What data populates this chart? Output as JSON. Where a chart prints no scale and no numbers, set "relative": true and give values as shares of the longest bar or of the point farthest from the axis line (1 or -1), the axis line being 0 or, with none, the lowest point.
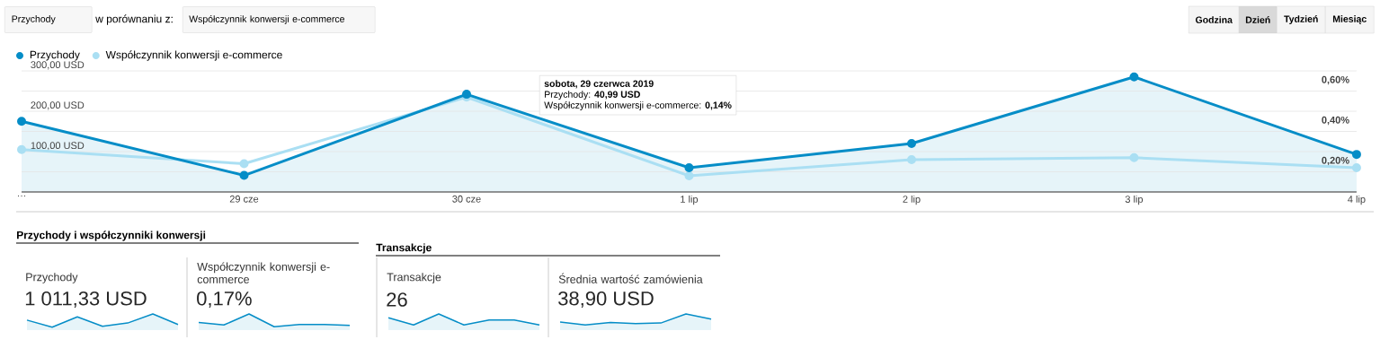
{
  "chart_data": [
    {
      "type": "line",
      "categories": [
        "…",
        "29 cze",
        "30 cze",
        "1 lip",
        "2 lip",
        "3 lip",
        "4 lip"
      ],
      "series": [
        {
          "name": "Przychody",
          "color": "#058dc7",
          "type": "area",
          "values": [
            175,
            40.99,
            242,
            60,
            120,
            285,
            93
          ]
        },
        {
          "name": "Współczynnik konwersji e-commerce",
          "color": "#aadff3",
          "type": "line",
          "axis": "y2",
          "values": [
            0.21,
            0.14,
            0.47,
            0.08,
            0.16,
            0.17,
            0.12
          ]
        }
      ],
      "ylim": [
        0,
        300
      ],
      "yticks": [
        {
          "value": 0,
          "label": null
        },
        {
          "value": 50,
          "label": null
        },
        {
          "value": 100,
          "label": "100,00 USD"
        },
        {
          "value": 150,
          "label": null
        },
        {
          "value": 200,
          "label": "200,00 USD"
        },
        {
          "value": 250,
          "label": null
        },
        {
          "value": 300,
          "label": "300,00 USD"
        }
      ],
      "y2lim": [
        0,
        0.6
      ],
      "y2ticks": [
        {
          "value": 0.2,
          "label": "0,20%"
        },
        {
          "value": 0.4,
          "label": "0,40%"
        },
        {
          "value": 0.6,
          "label": "0,60%"
        }
      ],
      "grid": "y",
      "legend": "top left",
      "marker": "circle",
      "annotations": [
        "Przychody",
        "w porównaniu z:",
        "Współczynnik konwersji e-commerce",
        "Godzina",
        "Dzień",
        "Tydzień",
        "Miesiąc",
        "sobota, 29 czerwca 2019",
        "Przychody: **40,99 USD**",
        "Współczynnik konwersji e-commerce: **0,14%**"
      ]
    },
    {
      "type": "area",
      "title": "Przychody",
      "subtitle": "1 011,33 USD",
      "categories": [
        null,
        null,
        null,
        null,
        null,
        null,
        null
      ],
      "color": "#058dc7",
      "relative": true,
      "values": [
        0.62,
        0.18,
        0.82,
        0.24,
        0.44,
        1,
        0.35
      ],
      "annotations": [
        "Przychody i współczynniki konwersji"
      ]
    },
    {
      "type": "area",
      "title": "Współczynnik konwersji e-commerce",
      "subtitle": "0,17%",
      "categories": [
        null,
        null,
        null,
        null,
        null,
        null,
        null
      ],
      "color": "#058dc7",
      "relative": true,
      "values": [
        0.47,
        0.32,
        1,
        0.21,
        0.35,
        0.35,
        0.29
      ]
    },
    {
      "type": "area",
      "title": "Transakcje",
      "subtitle": "26",
      "categories": [
        null,
        null,
        null,
        null,
        null,
        null,
        null
      ],
      "color": "#058dc7",
      "relative": true,
      "values": [
        0.76,
        0.32,
        1,
        0.32,
        0.62,
        0.62,
        0.32
      ],
      "annotations": [
        "Transakcje"
      ]
    },
    {
      "type": "area",
      "title": "Średnia wartość zamówienia",
      "subtitle": "38,90 USD",
      "categories": [
        null,
        null,
        null,
        null,
        null,
        null,
        null
      ],
      "color": "#058dc7",
      "relative": true,
      "values": [
        0.5,
        0.32,
        0.47,
        0.41,
        0.44,
        1,
        0.68
      ]
    }
  ]
}
